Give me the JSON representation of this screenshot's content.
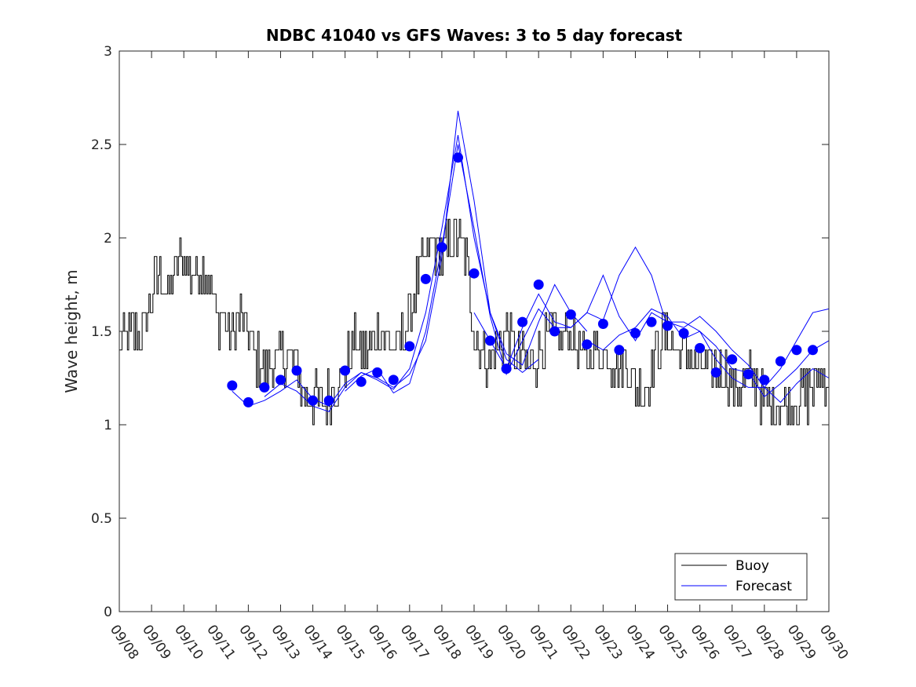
{
  "chart_data": {
    "type": "line",
    "title": "NDBC 41040 vs GFS Waves: 3 to 5 day forecast",
    "xlabel": "",
    "ylabel": "Wave height, m",
    "xlim": [
      0,
      22
    ],
    "ylim": [
      0,
      3
    ],
    "x_tick_labels": [
      "09/08",
      "09/09",
      "09/10",
      "09/11",
      "09/12",
      "09/13",
      "09/14",
      "09/15",
      "09/16",
      "09/17",
      "09/18",
      "09/19",
      "09/20",
      "09/21",
      "09/22",
      "09/23",
      "09/24",
      "09/25",
      "09/26",
      "09/27",
      "09/28",
      "09/29",
      "09/30"
    ],
    "y_ticks": [
      0,
      0.5,
      1,
      1.5,
      2,
      2.5,
      3
    ],
    "y_tick_labels": [
      "0",
      "0.5",
      "1",
      "1.5",
      "2",
      "2.5",
      "3"
    ],
    "legend": {
      "position": "bottom-right",
      "entries": [
        "Buoy",
        "Forecast"
      ]
    },
    "colors": {
      "buoy": "#000000",
      "forecast": "#0000ff"
    },
    "series": [
      {
        "name": "Buoy",
        "note": "day offsets from 09/08 00Z",
        "x": [
          0,
          0.25,
          0.5,
          0.75,
          1,
          1.25,
          1.5,
          1.75,
          2,
          2.25,
          2.5,
          2.75,
          3,
          3.25,
          3.5,
          3.75,
          4,
          4.25,
          4.5,
          4.75,
          5,
          5.25,
          5.5,
          5.75,
          6,
          6.25,
          6.5,
          6.75,
          7,
          7.25,
          7.5,
          7.75,
          8,
          8.25,
          8.5,
          8.75,
          9,
          9.25,
          9.5,
          9.75,
          10,
          10.25,
          10.5,
          10.75,
          11,
          11.25,
          11.5,
          11.75,
          12,
          12.25,
          12.5,
          12.75,
          13,
          13.25,
          13.5,
          13.75,
          14,
          14.25,
          14.5,
          14.75,
          15,
          15.25,
          15.5,
          15.75,
          16,
          16.25,
          16.5,
          16.75,
          17,
          17.25,
          17.5,
          17.75,
          18,
          18.25,
          18.5,
          18.75,
          19,
          19.25,
          19.5,
          19.75,
          20,
          20.25,
          20.5,
          20.75,
          21,
          21.25,
          21.5,
          21.75,
          22
        ],
        "values": [
          1.4,
          1.45,
          1.5,
          1.5,
          1.7,
          1.8,
          1.7,
          1.85,
          1.9,
          1.8,
          1.85,
          1.8,
          1.6,
          1.55,
          1.45,
          1.6,
          1.45,
          1.35,
          1.3,
          1.3,
          1.35,
          1.35,
          1.3,
          1.15,
          1.15,
          1.1,
          1.15,
          1.25,
          1.3,
          1.45,
          1.4,
          1.4,
          1.5,
          1.45,
          1.4,
          1.45,
          1.6,
          1.8,
          1.9,
          1.95,
          1.9,
          1.95,
          2.0,
          1.9,
          1.5,
          1.4,
          1.35,
          1.4,
          1.5,
          1.4,
          1.35,
          1.3,
          1.4,
          1.45,
          1.5,
          1.45,
          1.5,
          1.4,
          1.35,
          1.4,
          1.4,
          1.35,
          1.3,
          1.3,
          1.2,
          1.2,
          1.3,
          1.45,
          1.5,
          1.4,
          1.4,
          1.35,
          1.3,
          1.25,
          1.3,
          1.3,
          1.2,
          1.2,
          1.25,
          1.25,
          1.1,
          1.1,
          1.1,
          1.1,
          1.15,
          1.15,
          1.2,
          1.25,
          1.25
        ]
      },
      {
        "name": "Forecast",
        "x": [
          3.5,
          4.0,
          4.5,
          5.0,
          5.5,
          6.0,
          6.5,
          7.0,
          7.5,
          8.0,
          8.5,
          9.0,
          9.5,
          10.0,
          10.5,
          11.0,
          11.5,
          12.0,
          12.5,
          13.0,
          13.5,
          14.0,
          14.5,
          15.0,
          15.5,
          16.0,
          16.5,
          17.0,
          17.5,
          18.0,
          18.5,
          19.0,
          19.5,
          20.0,
          20.5,
          21.0,
          21.5
        ],
        "values": [
          1.21,
          1.12,
          1.2,
          1.24,
          1.29,
          1.13,
          1.13,
          1.29,
          1.23,
          1.28,
          1.24,
          1.42,
          1.78,
          1.95,
          2.43,
          1.81,
          1.45,
          1.3,
          1.55,
          1.75,
          1.5,
          1.59,
          1.43,
          1.54,
          1.4,
          1.49,
          1.55,
          1.53,
          1.49,
          1.41,
          1.28,
          1.35,
          1.27,
          1.24,
          1.34,
          1.4,
          1.4
        ]
      }
    ],
    "forecast_runs": [
      {
        "x": [
          3.5,
          4.0,
          4.5,
          5.0,
          5.5,
          6.0,
          6.5,
          7.0,
          7.5,
          8.0,
          8.5,
          9.0,
          9.5,
          10.0,
          10.5,
          11.0,
          11.5,
          12.0,
          12.5,
          13.0
        ],
        "values": [
          1.18,
          1.1,
          1.13,
          1.18,
          1.24,
          1.14,
          1.1,
          1.22,
          1.28,
          1.24,
          1.19,
          1.3,
          1.6,
          2.05,
          2.55,
          2.0,
          1.6,
          1.35,
          1.28,
          1.35
        ]
      },
      {
        "x": [
          4.5,
          5.0,
          5.5,
          6.0,
          6.5,
          7.0,
          7.5,
          8.0,
          8.5,
          9.0,
          9.5,
          10.0,
          10.5,
          11.0,
          11.5,
          12.0,
          12.5,
          13.0,
          13.5,
          14.0,
          14.5
        ],
        "values": [
          1.15,
          1.22,
          1.18,
          1.1,
          1.07,
          1.2,
          1.28,
          1.25,
          1.2,
          1.27,
          1.45,
          1.9,
          2.68,
          2.2,
          1.6,
          1.38,
          1.32,
          1.55,
          1.75,
          1.6,
          1.5
        ]
      },
      {
        "x": [
          7.0,
          7.5,
          8.0,
          8.5,
          9.0,
          9.5,
          10.0,
          10.5,
          11.0,
          11.5,
          12.0,
          12.5,
          13.0,
          13.5,
          14.0,
          14.5,
          15.0,
          15.5,
          16.0,
          16.5,
          17.0
        ],
        "values": [
          1.18,
          1.26,
          1.3,
          1.17,
          1.22,
          1.5,
          1.95,
          2.5,
          2.05,
          1.58,
          1.27,
          1.45,
          1.62,
          1.52,
          1.52,
          1.6,
          1.56,
          1.8,
          1.95,
          1.8,
          1.52
        ]
      },
      {
        "x": [
          11.0,
          11.5,
          12.0,
          12.5,
          13.0,
          13.5,
          14.0,
          14.5,
          15.0,
          15.5,
          16.0,
          16.5,
          17.0,
          17.5,
          18.0,
          18.5,
          19.0,
          19.5,
          20.0,
          20.5,
          21.0,
          21.5,
          22.0
        ],
        "values": [
          1.6,
          1.45,
          1.3,
          1.52,
          1.7,
          1.55,
          1.52,
          1.6,
          1.8,
          1.58,
          1.45,
          1.6,
          1.55,
          1.55,
          1.5,
          1.35,
          1.25,
          1.2,
          1.2,
          1.3,
          1.45,
          1.6,
          1.62
        ]
      },
      {
        "x": [
          14.5,
          15.0,
          15.5,
          16.0,
          16.5,
          17.0,
          17.5,
          18.0,
          18.5,
          19.0,
          19.5,
          20.0,
          20.5,
          21.0,
          21.5,
          22.0
        ],
        "values": [
          1.45,
          1.4,
          1.48,
          1.52,
          1.62,
          1.58,
          1.46,
          1.5,
          1.42,
          1.3,
          1.28,
          1.15,
          1.22,
          1.3,
          1.4,
          1.45
        ]
      },
      {
        "x": [
          17.0,
          17.5,
          18.0,
          18.5,
          19.0,
          19.5,
          20.0,
          20.5,
          21.0,
          21.5,
          22.0
        ],
        "values": [
          1.55,
          1.52,
          1.58,
          1.5,
          1.4,
          1.32,
          1.2,
          1.12,
          1.22,
          1.3,
          1.25
        ]
      }
    ]
  }
}
